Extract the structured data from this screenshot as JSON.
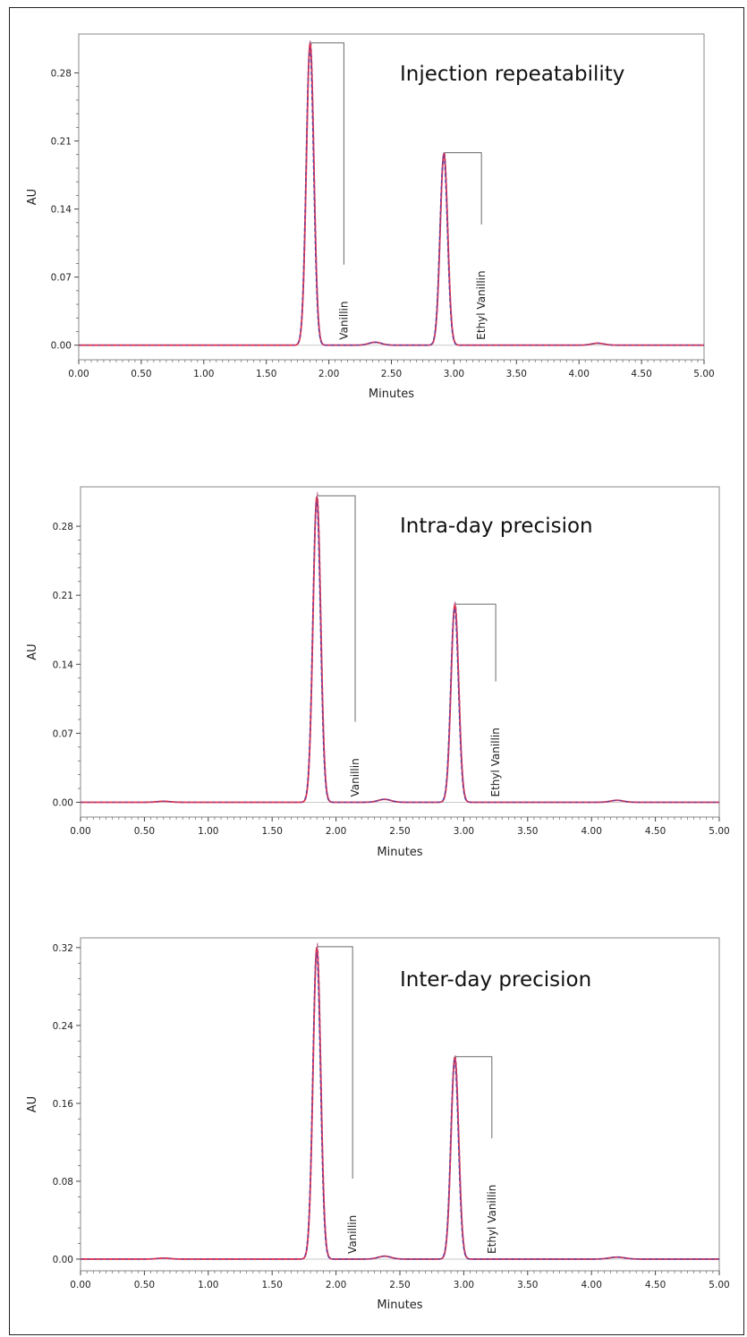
{
  "chart_data": [
    {
      "type": "line",
      "title": "Injection repeatability",
      "xlabel": "Minutes",
      "ylabel": "AU",
      "xlim": [
        0,
        5
      ],
      "ylim": [
        -0.015,
        0.32
      ],
      "xticks": [
        "0.00",
        "0.50",
        "1.00",
        "1.50",
        "2.00",
        "2.50",
        "3.00",
        "3.50",
        "4.00",
        "4.50",
        "5.00"
      ],
      "yticks": [
        0.0,
        0.07,
        0.14,
        0.21,
        0.28
      ],
      "ytick_labels": [
        "0.00",
        "0.07",
        "0.14",
        "0.21",
        "0.28"
      ],
      "grid": false,
      "peaks": [
        {
          "name": "Vanillin",
          "rt": 1.85,
          "height": 0.31,
          "width": 0.03,
          "bracket_x": 2.12
        },
        {
          "name": "Ethyl Vanillin",
          "rt": 2.92,
          "height": 0.197,
          "width": 0.03,
          "bracket_x": 3.22
        }
      ],
      "minor_peaks": [
        {
          "rt": 2.37,
          "height": 0.003,
          "width": 0.05
        },
        {
          "rt": 4.15,
          "height": 0.002,
          "width": 0.05
        }
      ],
      "series": [
        {
          "color": "#e8334a",
          "values": []
        },
        {
          "color": "#3a3fb0",
          "values": []
        },
        {
          "color": "#b0407a",
          "values": []
        }
      ]
    },
    {
      "type": "line",
      "title": "Intra-day precision",
      "xlabel": "Minutes",
      "ylabel": "AU",
      "xlim": [
        0,
        5
      ],
      "ylim": [
        -0.015,
        0.32
      ],
      "xticks": [
        "0.00",
        "0.50",
        "1.00",
        "1.50",
        "2.00",
        "2.50",
        "3.00",
        "3.50",
        "4.00",
        "4.50",
        "5.00"
      ],
      "yticks": [
        0.0,
        0.07,
        0.14,
        0.21,
        0.28
      ],
      "ytick_labels": [
        "0.00",
        "0.07",
        "0.14",
        "0.21",
        "0.28"
      ],
      "grid": false,
      "peaks": [
        {
          "name": "Vanillin",
          "rt": 1.85,
          "height": 0.31,
          "width": 0.03,
          "bracket_x": 2.15
        },
        {
          "name": "Ethyl Vanillin",
          "rt": 2.93,
          "height": 0.2,
          "width": 0.03,
          "bracket_x": 3.25
        }
      ],
      "minor_peaks": [
        {
          "rt": 0.65,
          "height": 0.001,
          "width": 0.05
        },
        {
          "rt": 2.38,
          "height": 0.003,
          "width": 0.05
        },
        {
          "rt": 4.2,
          "height": 0.002,
          "width": 0.05
        }
      ],
      "series": [
        {
          "color": "#e8334a",
          "values": []
        },
        {
          "color": "#3a3fb0",
          "values": []
        },
        {
          "color": "#b0407a",
          "values": []
        }
      ]
    },
    {
      "type": "line",
      "title": "Inter-day precision",
      "xlabel": "Minutes",
      "ylabel": "AU",
      "xlim": [
        0,
        5
      ],
      "ylim": [
        -0.012,
        0.33
      ],
      "xticks": [
        "0.00",
        "0.50",
        "1.00",
        "1.50",
        "2.00",
        "2.50",
        "3.00",
        "3.50",
        "4.00",
        "4.50",
        "5.00"
      ],
      "yticks": [
        0.0,
        0.08,
        0.16,
        0.24,
        0.32
      ],
      "ytick_labels": [
        "0.00",
        "0.08",
        "0.16",
        "0.24",
        "0.32"
      ],
      "grid": false,
      "peaks": [
        {
          "name": "Vanillin",
          "rt": 1.85,
          "height": 0.32,
          "width": 0.03,
          "bracket_x": 2.13
        },
        {
          "name": "Ethyl Vanillin",
          "rt": 2.93,
          "height": 0.207,
          "width": 0.03,
          "bracket_x": 3.22
        }
      ],
      "minor_peaks": [
        {
          "rt": 0.65,
          "height": 0.001,
          "width": 0.05
        },
        {
          "rt": 2.38,
          "height": 0.003,
          "width": 0.05
        },
        {
          "rt": 4.2,
          "height": 0.002,
          "width": 0.06
        }
      ],
      "series": [
        {
          "color": "#e8334a",
          "values": []
        },
        {
          "color": "#3a3fb0",
          "values": []
        },
        {
          "color": "#b0407a",
          "values": []
        }
      ]
    }
  ]
}
